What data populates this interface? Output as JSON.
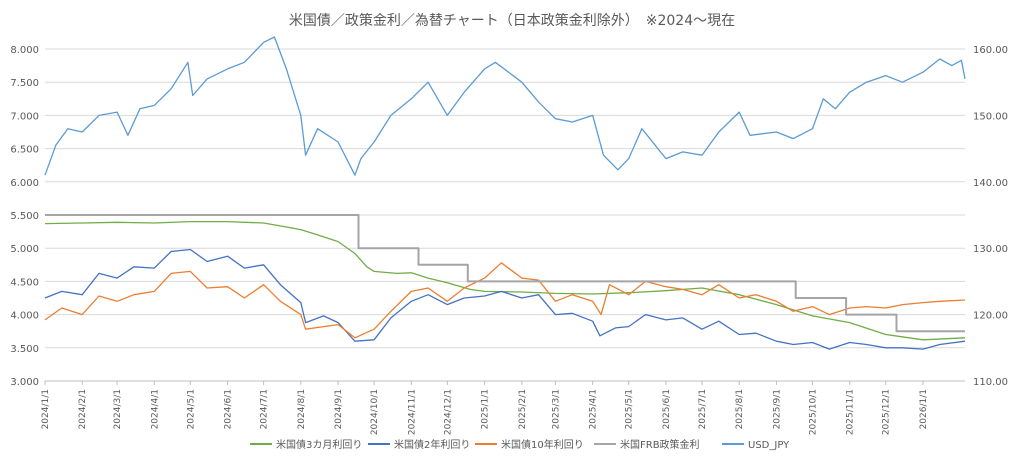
{
  "chart_data": {
    "type": "line",
    "title": "米国債／政策金利／為替チャート（日本政策金利除外）　※2024～現在",
    "y_left": {
      "min": 3.0,
      "max": 8.0,
      "ticks": [
        "3.000",
        "3.500",
        "4.000",
        "4.500",
        "5.000",
        "5.500",
        "6.000",
        "6.500",
        "7.000",
        "7.500",
        "8.000"
      ]
    },
    "y_right": {
      "min": 110,
      "max": 160,
      "ticks": [
        "110.00",
        "120.00",
        "130.00",
        "140.00",
        "150.00",
        "160.00"
      ]
    },
    "x_range": [
      "2024-01-01",
      "2026-02-05"
    ],
    "x_ticks": [
      "2024/1/1",
      "2024/2/1",
      "2024/3/1",
      "2024/4/1",
      "2024/5/1",
      "2024/6/1",
      "2024/7/1",
      "2024/8/1",
      "2024/9/1",
      "2024/10/1",
      "2024/11/1",
      "2024/12/1",
      "2025/1/1",
      "2025/2/1",
      "2025/3/1",
      "2025/4/1",
      "2025/5/1",
      "2025/6/1",
      "2025/7/1",
      "2025/8/1",
      "2025/9/1",
      "2025/10/1",
      "2025/11/1",
      "2025/12/1",
      "2026/1/1"
    ],
    "gridlines": "horizontal",
    "legend_position": "bottom",
    "series": [
      {
        "name": "米国債3カ月利回り",
        "color": "#70ad47",
        "axis": "left",
        "shape": "line",
        "points": [
          [
            "2024-01-01",
            5.37
          ],
          [
            "2024-02-01",
            5.38
          ],
          [
            "2024-03-01",
            5.39
          ],
          [
            "2024-04-01",
            5.38
          ],
          [
            "2024-05-01",
            5.4
          ],
          [
            "2024-06-01",
            5.4
          ],
          [
            "2024-07-01",
            5.38
          ],
          [
            "2024-07-20",
            5.32
          ],
          [
            "2024-08-01",
            5.28
          ],
          [
            "2024-08-15",
            5.2
          ],
          [
            "2024-09-01",
            5.1
          ],
          [
            "2024-09-15",
            4.92
          ],
          [
            "2024-09-25",
            4.72
          ],
          [
            "2024-10-01",
            4.65
          ],
          [
            "2024-10-20",
            4.62
          ],
          [
            "2024-11-01",
            4.63
          ],
          [
            "2024-11-15",
            4.55
          ],
          [
            "2024-12-01",
            4.48
          ],
          [
            "2024-12-20",
            4.38
          ],
          [
            "2025-01-01",
            4.35
          ],
          [
            "2025-02-01",
            4.34
          ],
          [
            "2025-03-01",
            4.32
          ],
          [
            "2025-04-01",
            4.31
          ],
          [
            "2025-05-01",
            4.33
          ],
          [
            "2025-06-01",
            4.36
          ],
          [
            "2025-07-01",
            4.4
          ],
          [
            "2025-08-01",
            4.3
          ],
          [
            "2025-09-01",
            4.15
          ],
          [
            "2025-10-01",
            3.98
          ],
          [
            "2025-11-01",
            3.88
          ],
          [
            "2025-12-01",
            3.7
          ],
          [
            "2026-01-01",
            3.62
          ],
          [
            "2026-02-05",
            3.65
          ]
        ]
      },
      {
        "name": "米国債2年利回り",
        "color": "#4472c4",
        "axis": "left",
        "shape": "line",
        "points": [
          [
            "2024-01-01",
            4.25
          ],
          [
            "2024-01-15",
            4.35
          ],
          [
            "2024-02-01",
            4.3
          ],
          [
            "2024-02-15",
            4.62
          ],
          [
            "2024-03-01",
            4.55
          ],
          [
            "2024-03-15",
            4.72
          ],
          [
            "2024-04-01",
            4.7
          ],
          [
            "2024-04-15",
            4.95
          ],
          [
            "2024-05-01",
            4.98
          ],
          [
            "2024-05-15",
            4.8
          ],
          [
            "2024-06-01",
            4.88
          ],
          [
            "2024-06-15",
            4.7
          ],
          [
            "2024-07-01",
            4.75
          ],
          [
            "2024-07-15",
            4.45
          ],
          [
            "2024-08-01",
            4.18
          ],
          [
            "2024-08-05",
            3.88
          ],
          [
            "2024-08-20",
            3.98
          ],
          [
            "2024-09-01",
            3.88
          ],
          [
            "2024-09-15",
            3.6
          ],
          [
            "2024-10-01",
            3.62
          ],
          [
            "2024-10-15",
            3.95
          ],
          [
            "2024-11-01",
            4.2
          ],
          [
            "2024-11-15",
            4.3
          ],
          [
            "2024-12-01",
            4.15
          ],
          [
            "2024-12-15",
            4.25
          ],
          [
            "2025-01-01",
            4.28
          ],
          [
            "2025-01-15",
            4.35
          ],
          [
            "2025-02-01",
            4.25
          ],
          [
            "2025-02-15",
            4.3
          ],
          [
            "2025-03-01",
            4.0
          ],
          [
            "2025-03-15",
            4.02
          ],
          [
            "2025-04-01",
            3.9
          ],
          [
            "2025-04-07",
            3.68
          ],
          [
            "2025-04-20",
            3.8
          ],
          [
            "2025-05-01",
            3.82
          ],
          [
            "2025-05-15",
            4.0
          ],
          [
            "2025-06-01",
            3.92
          ],
          [
            "2025-06-15",
            3.95
          ],
          [
            "2025-07-01",
            3.78
          ],
          [
            "2025-07-15",
            3.9
          ],
          [
            "2025-08-01",
            3.7
          ],
          [
            "2025-08-15",
            3.72
          ],
          [
            "2025-09-01",
            3.6
          ],
          [
            "2025-09-15",
            3.55
          ],
          [
            "2025-10-01",
            3.58
          ],
          [
            "2025-10-15",
            3.48
          ],
          [
            "2025-11-01",
            3.58
          ],
          [
            "2025-11-15",
            3.55
          ],
          [
            "2025-12-01",
            3.5
          ],
          [
            "2025-12-15",
            3.5
          ],
          [
            "2026-01-01",
            3.48
          ],
          [
            "2026-01-15",
            3.55
          ],
          [
            "2026-02-05",
            3.6
          ]
        ]
      },
      {
        "name": "米国債10年利回り",
        "color": "#ed7d31",
        "axis": "left",
        "shape": "line",
        "points": [
          [
            "2024-01-01",
            3.92
          ],
          [
            "2024-01-15",
            4.1
          ],
          [
            "2024-02-01",
            4.0
          ],
          [
            "2024-02-15",
            4.28
          ],
          [
            "2024-03-01",
            4.2
          ],
          [
            "2024-03-15",
            4.3
          ],
          [
            "2024-04-01",
            4.35
          ],
          [
            "2024-04-15",
            4.62
          ],
          [
            "2024-05-01",
            4.65
          ],
          [
            "2024-05-15",
            4.4
          ],
          [
            "2024-06-01",
            4.42
          ],
          [
            "2024-06-15",
            4.25
          ],
          [
            "2024-07-01",
            4.45
          ],
          [
            "2024-07-15",
            4.2
          ],
          [
            "2024-08-01",
            4.0
          ],
          [
            "2024-08-05",
            3.78
          ],
          [
            "2024-08-20",
            3.82
          ],
          [
            "2024-09-01",
            3.85
          ],
          [
            "2024-09-15",
            3.65
          ],
          [
            "2024-10-01",
            3.78
          ],
          [
            "2024-10-15",
            4.05
          ],
          [
            "2024-11-01",
            4.35
          ],
          [
            "2024-11-15",
            4.4
          ],
          [
            "2024-12-01",
            4.2
          ],
          [
            "2024-12-15",
            4.4
          ],
          [
            "2025-01-01",
            4.55
          ],
          [
            "2025-01-15",
            4.78
          ],
          [
            "2025-02-01",
            4.55
          ],
          [
            "2025-02-15",
            4.52
          ],
          [
            "2025-03-01",
            4.2
          ],
          [
            "2025-03-15",
            4.3
          ],
          [
            "2025-04-01",
            4.2
          ],
          [
            "2025-04-08",
            4.0
          ],
          [
            "2025-04-15",
            4.45
          ],
          [
            "2025-05-01",
            4.3
          ],
          [
            "2025-05-15",
            4.5
          ],
          [
            "2025-06-01",
            4.42
          ],
          [
            "2025-06-15",
            4.38
          ],
          [
            "2025-07-01",
            4.3
          ],
          [
            "2025-07-15",
            4.45
          ],
          [
            "2025-08-01",
            4.25
          ],
          [
            "2025-08-15",
            4.3
          ],
          [
            "2025-09-01",
            4.2
          ],
          [
            "2025-09-15",
            4.05
          ],
          [
            "2025-10-01",
            4.12
          ],
          [
            "2025-10-15",
            4.0
          ],
          [
            "2025-11-01",
            4.1
          ],
          [
            "2025-11-15",
            4.12
          ],
          [
            "2025-12-01",
            4.1
          ],
          [
            "2025-12-15",
            4.15
          ],
          [
            "2026-01-01",
            4.18
          ],
          [
            "2026-01-15",
            4.2
          ],
          [
            "2026-02-05",
            4.22
          ]
        ]
      },
      {
        "name": "米国FRB政策金利",
        "color": "#a5a5a5",
        "axis": "left",
        "shape": "step",
        "points": [
          [
            "2024-01-01",
            5.5
          ],
          [
            "2024-09-18",
            5.0
          ],
          [
            "2024-11-07",
            4.75
          ],
          [
            "2024-12-18",
            4.5
          ],
          [
            "2025-09-17",
            4.25
          ],
          [
            "2025-10-29",
            4.0
          ],
          [
            "2025-12-10",
            3.75
          ],
          [
            "2026-02-05",
            3.75
          ]
        ]
      },
      {
        "name": "USD_JPY",
        "color": "#5b9bd5",
        "axis": "right",
        "shape": "line",
        "points": [
          [
            "2024-01-01",
            141.0
          ],
          [
            "2024-01-10",
            145.5
          ],
          [
            "2024-01-20",
            148.0
          ],
          [
            "2024-02-01",
            147.5
          ],
          [
            "2024-02-15",
            150.0
          ],
          [
            "2024-03-01",
            150.5
          ],
          [
            "2024-03-10",
            147.0
          ],
          [
            "2024-03-20",
            151.0
          ],
          [
            "2024-04-01",
            151.5
          ],
          [
            "2024-04-15",
            154.0
          ],
          [
            "2024-04-29",
            158.0
          ],
          [
            "2024-05-03",
            153.0
          ],
          [
            "2024-05-15",
            155.5
          ],
          [
            "2024-06-01",
            157.0
          ],
          [
            "2024-06-15",
            158.0
          ],
          [
            "2024-07-01",
            161.0
          ],
          [
            "2024-07-10",
            161.8
          ],
          [
            "2024-07-20",
            157.0
          ],
          [
            "2024-08-01",
            150.0
          ],
          [
            "2024-08-05",
            144.0
          ],
          [
            "2024-08-15",
            148.0
          ],
          [
            "2024-09-01",
            146.0
          ],
          [
            "2024-09-15",
            141.0
          ],
          [
            "2024-09-20",
            143.5
          ],
          [
            "2024-10-01",
            146.0
          ],
          [
            "2024-10-15",
            150.0
          ],
          [
            "2024-11-01",
            152.5
          ],
          [
            "2024-11-15",
            155.0
          ],
          [
            "2024-12-01",
            150.0
          ],
          [
            "2024-12-15",
            153.5
          ],
          [
            "2025-01-01",
            157.0
          ],
          [
            "2025-01-10",
            158.0
          ],
          [
            "2025-02-01",
            155.0
          ],
          [
            "2025-02-15",
            152.0
          ],
          [
            "2025-03-01",
            149.5
          ],
          [
            "2025-03-15",
            149.0
          ],
          [
            "2025-04-01",
            150.0
          ],
          [
            "2025-04-10",
            144.0
          ],
          [
            "2025-04-22",
            141.8
          ],
          [
            "2025-05-01",
            143.5
          ],
          [
            "2025-05-12",
            148.0
          ],
          [
            "2025-06-01",
            143.5
          ],
          [
            "2025-06-15",
            144.5
          ],
          [
            "2025-07-01",
            144.0
          ],
          [
            "2025-07-15",
            147.5
          ],
          [
            "2025-08-01",
            150.5
          ],
          [
            "2025-08-10",
            147.0
          ],
          [
            "2025-09-01",
            147.5
          ],
          [
            "2025-09-15",
            146.5
          ],
          [
            "2025-10-01",
            148.0
          ],
          [
            "2025-10-10",
            152.5
          ],
          [
            "2025-10-20",
            151.0
          ],
          [
            "2025-11-01",
            153.5
          ],
          [
            "2025-11-15",
            155.0
          ],
          [
            "2025-12-01",
            156.0
          ],
          [
            "2025-12-15",
            155.0
          ],
          [
            "2026-01-01",
            156.5
          ],
          [
            "2026-01-15",
            158.5
          ],
          [
            "2026-01-25",
            157.5
          ],
          [
            "2026-02-02",
            158.3
          ],
          [
            "2026-02-05",
            155.5
          ]
        ]
      }
    ]
  }
}
